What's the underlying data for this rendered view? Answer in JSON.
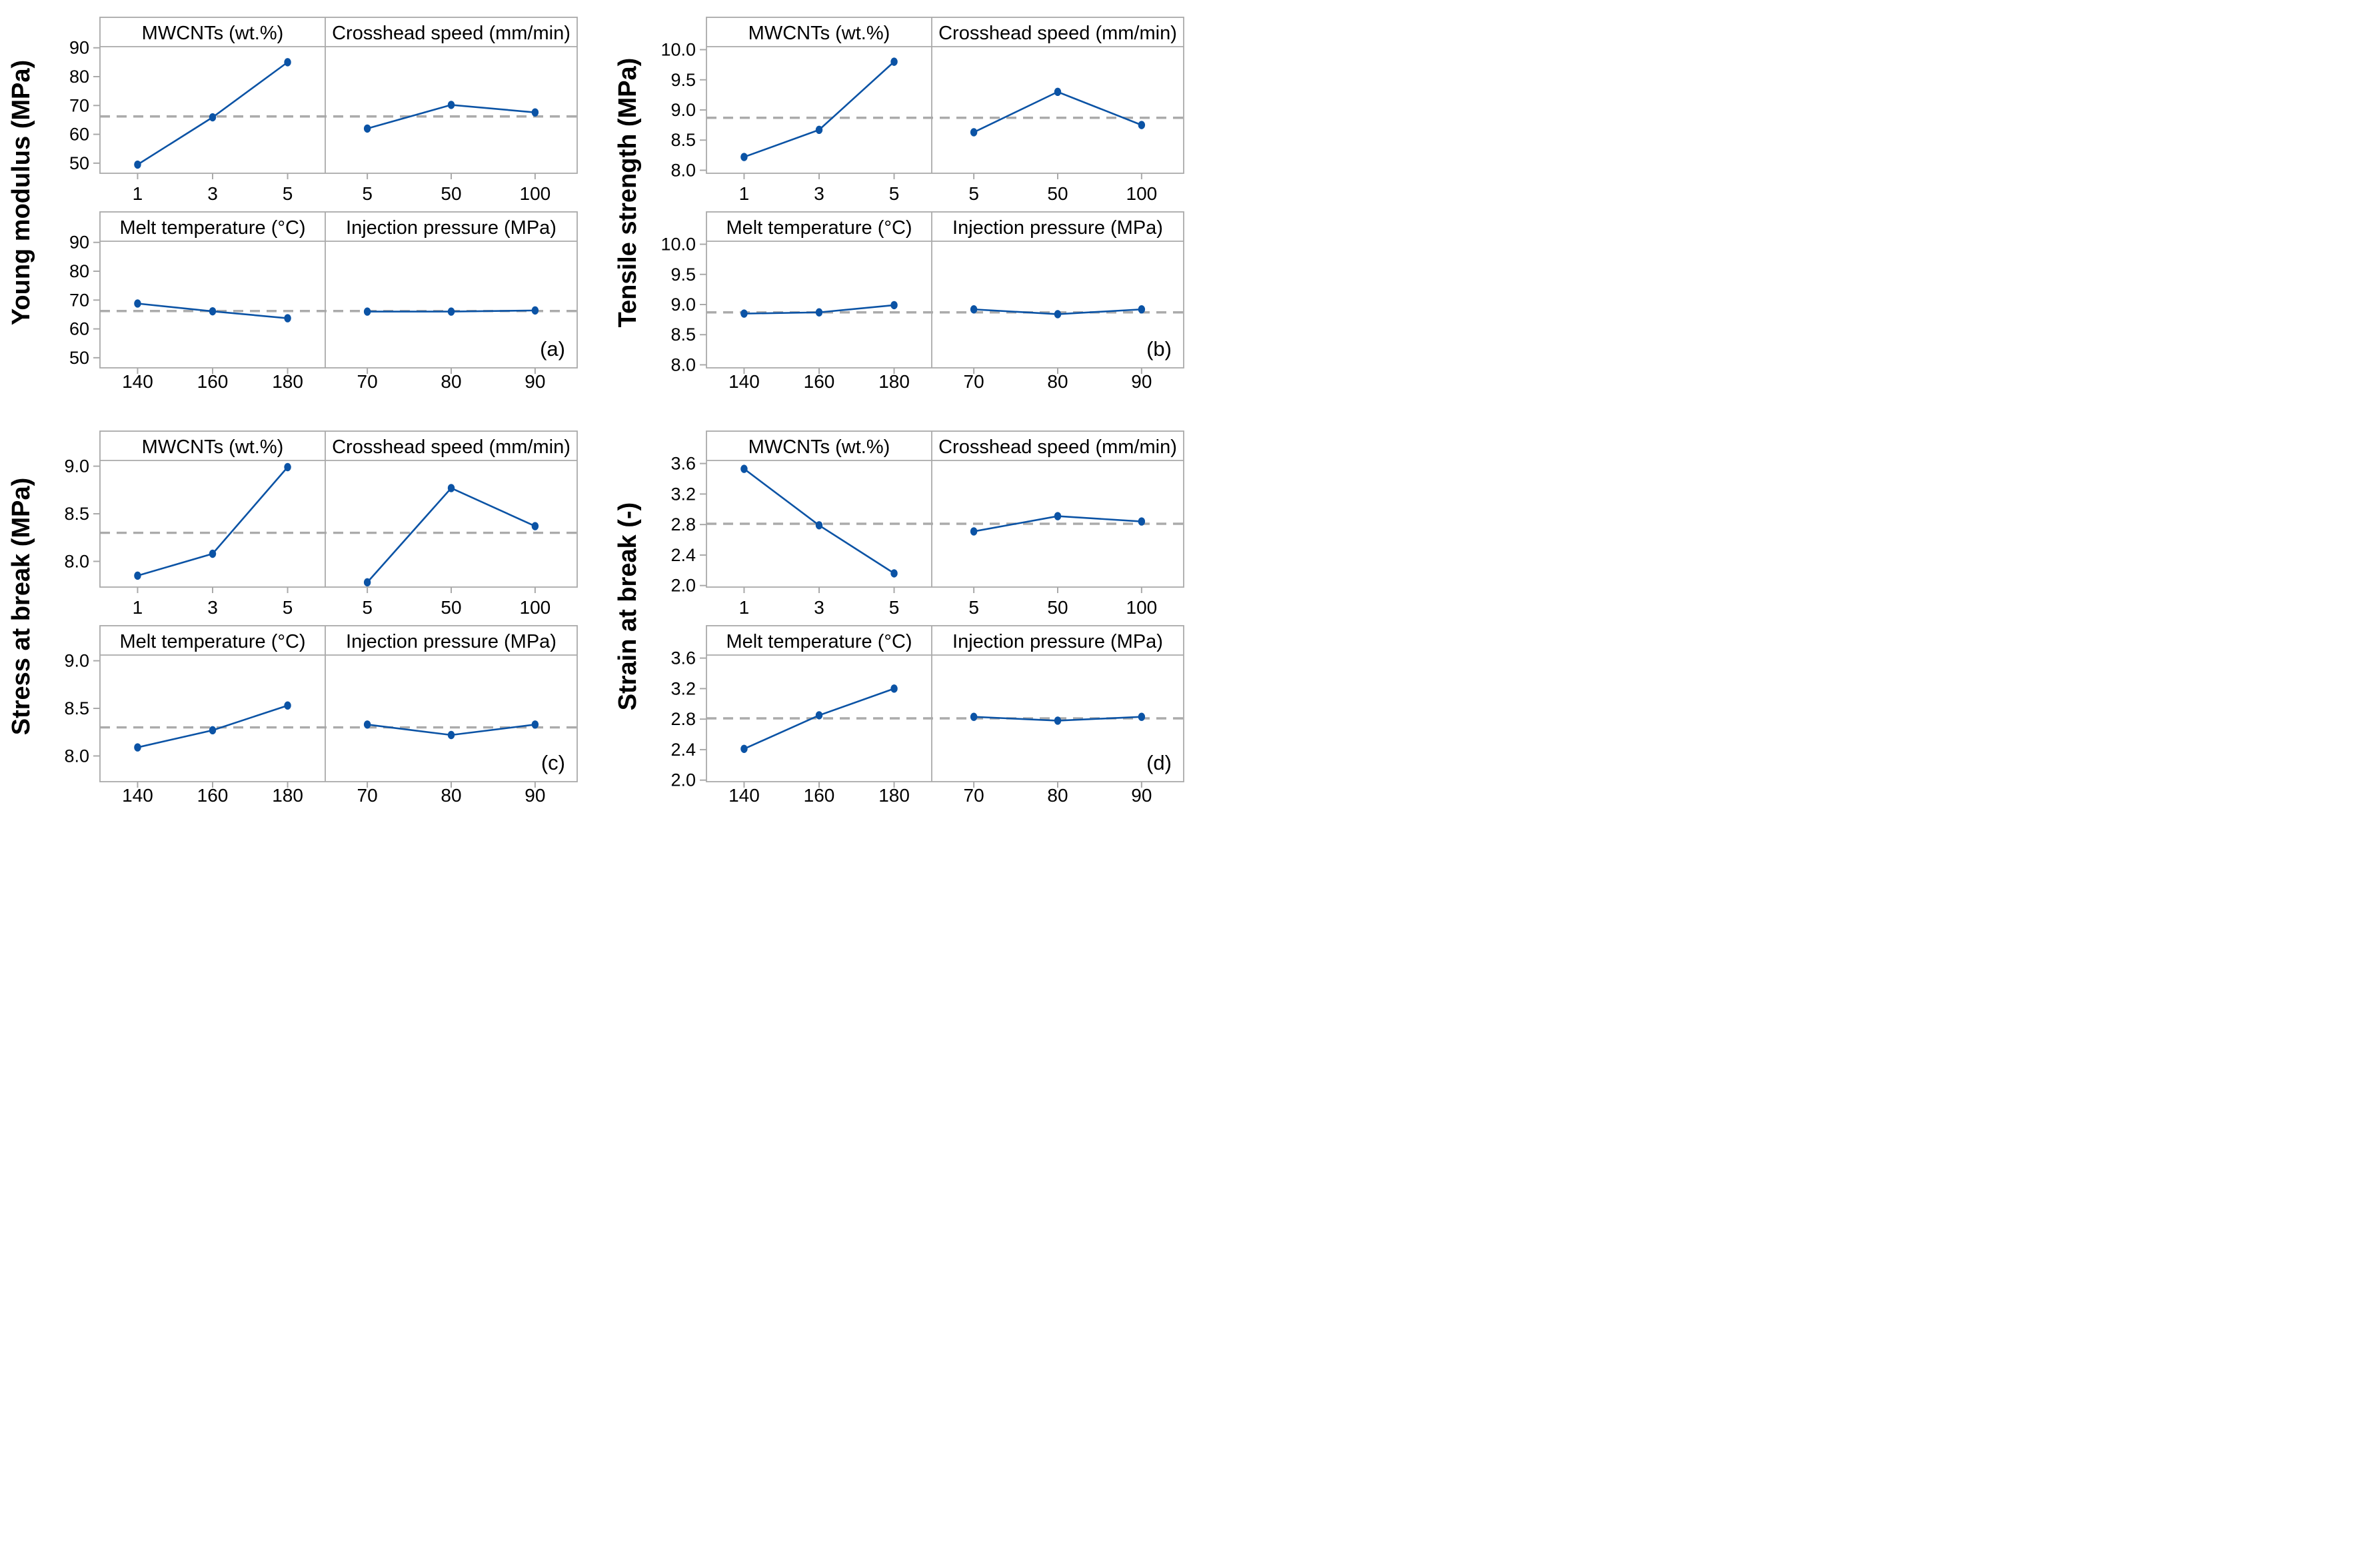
{
  "style": {
    "line_color": "#0B53A5",
    "marker_color": "#0B53A5",
    "mean_line_color": "#ABABAB",
    "border_color": "#A9A9A9",
    "text_color": "#000000",
    "background": "#FFFFFF"
  },
  "chart_data": [
    {
      "id": "a",
      "type": "line",
      "corner_label": "(a)",
      "ylabel": "Young modulus (MPa)",
      "yticks": [
        "50",
        "60",
        "70",
        "80",
        "90"
      ],
      "ytick_values": [
        50,
        60,
        70,
        80,
        90
      ],
      "ylim": [
        46.5,
        90.4
      ],
      "mean_line": 66.2,
      "grid": false,
      "legend": "none",
      "subplots": [
        {
          "row": 0,
          "col": 0,
          "title": "MWCNTs (wt.%)",
          "x": [
            "1",
            "3",
            "5"
          ],
          "values": [
            49.5,
            65.9,
            85.0
          ]
        },
        {
          "row": 0,
          "col": 1,
          "title": "Crosshead speed (mm/min)",
          "x": [
            "5",
            "50",
            "100"
          ],
          "values": [
            62.0,
            70.2,
            67.6
          ]
        },
        {
          "row": 1,
          "col": 0,
          "title": "Melt temperature (°C)",
          "x": [
            "140",
            "160",
            "180"
          ],
          "values": [
            68.8,
            66.1,
            63.7
          ]
        },
        {
          "row": 1,
          "col": 1,
          "title": "Injection pressure (MPa)",
          "x": [
            "70",
            "80",
            "90"
          ],
          "values": [
            66.0,
            66.0,
            66.4
          ]
        }
      ]
    },
    {
      "id": "b",
      "type": "line",
      "corner_label": "(b)",
      "ylabel": "Tensile strength (MPa)",
      "yticks": [
        "8.0",
        "8.5",
        "9.0",
        "9.5",
        "10.0"
      ],
      "ytick_values": [
        8.0,
        8.5,
        9.0,
        9.5,
        10.0
      ],
      "ylim": [
        7.95,
        10.05
      ],
      "mean_line": 8.87,
      "grid": false,
      "legend": "none",
      "subplots": [
        {
          "row": 0,
          "col": 0,
          "title": "MWCNTs (wt.%)",
          "x": [
            "1",
            "3",
            "5"
          ],
          "values": [
            8.22,
            8.67,
            9.8
          ]
        },
        {
          "row": 0,
          "col": 1,
          "title": "Crosshead speed (mm/min)",
          "x": [
            "5",
            "50",
            "100"
          ],
          "values": [
            8.63,
            9.3,
            8.75
          ]
        },
        {
          "row": 1,
          "col": 0,
          "title": "Melt temperature (°C)",
          "x": [
            "140",
            "160",
            "180"
          ],
          "values": [
            8.85,
            8.87,
            8.99
          ]
        },
        {
          "row": 1,
          "col": 1,
          "title": "Injection pressure (MPa)",
          "x": [
            "70",
            "80",
            "90"
          ],
          "values": [
            8.92,
            8.84,
            8.92
          ]
        }
      ]
    },
    {
      "id": "c",
      "type": "line",
      "corner_label": "(c)",
      "ylabel": "Stress at break (MPa)",
      "yticks": [
        "8.0",
        "8.5",
        "9.0"
      ],
      "ytick_values": [
        8.0,
        8.5,
        9.0
      ],
      "ylim": [
        7.73,
        9.06
      ],
      "mean_line": 8.3,
      "grid": false,
      "legend": "none",
      "subplots": [
        {
          "row": 0,
          "col": 0,
          "title": "MWCNTs (wt.%)",
          "x": [
            "1",
            "3",
            "5"
          ],
          "values": [
            7.85,
            8.08,
            8.99
          ]
        },
        {
          "row": 0,
          "col": 1,
          "title": "Crosshead speed (mm/min)",
          "x": [
            "5",
            "50",
            "100"
          ],
          "values": [
            7.78,
            8.77,
            8.37
          ]
        },
        {
          "row": 1,
          "col": 0,
          "title": "Melt temperature (°C)",
          "x": [
            "140",
            "160",
            "180"
          ],
          "values": [
            8.09,
            8.27,
            8.53
          ]
        },
        {
          "row": 1,
          "col": 1,
          "title": "Injection pressure (MPa)",
          "x": [
            "70",
            "80",
            "90"
          ],
          "values": [
            8.33,
            8.22,
            8.33
          ]
        }
      ]
    },
    {
      "id": "d",
      "type": "line",
      "corner_label": "(d)",
      "ylabel": "Strain at break (-)",
      "yticks": [
        "2.0",
        "2.4",
        "2.8",
        "3.2",
        "3.6"
      ],
      "ytick_values": [
        2.0,
        2.4,
        2.8,
        3.2,
        3.6
      ],
      "ylim": [
        1.98,
        3.64
      ],
      "mean_line": 2.81,
      "grid": false,
      "legend": "none",
      "subplots": [
        {
          "row": 0,
          "col": 0,
          "title": "MWCNTs (wt.%)",
          "x": [
            "1",
            "3",
            "5"
          ],
          "values": [
            3.53,
            2.79,
            2.16
          ]
        },
        {
          "row": 0,
          "col": 1,
          "title": "Crosshead speed (mm/min)",
          "x": [
            "5",
            "50",
            "100"
          ],
          "values": [
            2.71,
            2.91,
            2.84
          ]
        },
        {
          "row": 1,
          "col": 0,
          "title": "Melt temperature (°C)",
          "x": [
            "140",
            "160",
            "180"
          ],
          "values": [
            2.41,
            2.85,
            3.2
          ]
        },
        {
          "row": 1,
          "col": 1,
          "title": "Injection pressure (MPa)",
          "x": [
            "70",
            "80",
            "90"
          ],
          "values": [
            2.83,
            2.78,
            2.83
          ]
        }
      ]
    }
  ]
}
